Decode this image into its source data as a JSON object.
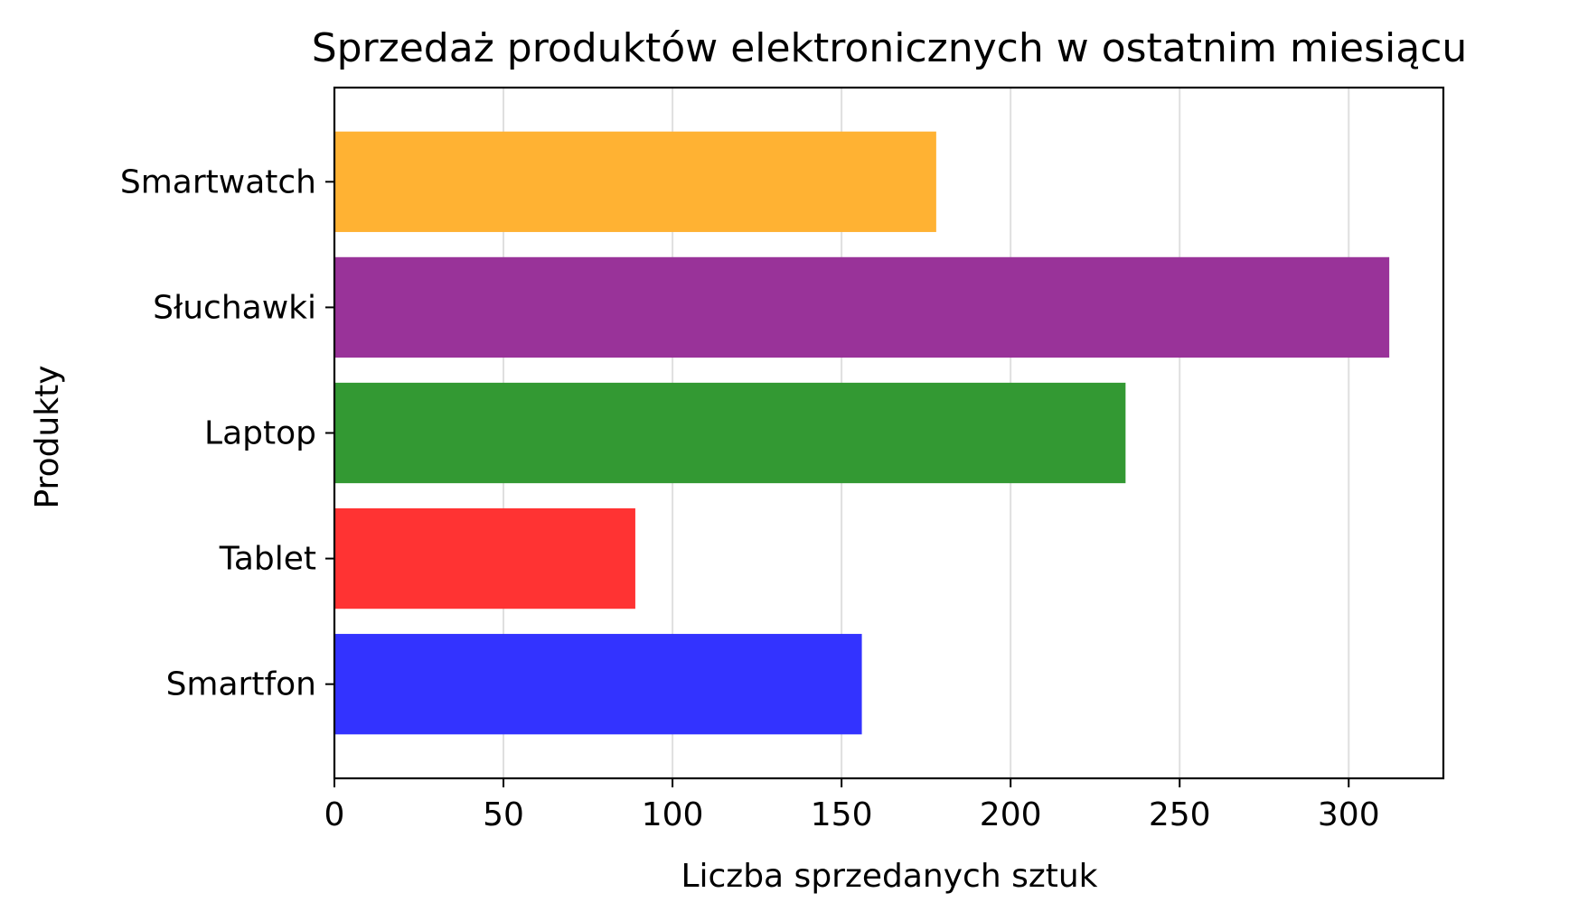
{
  "chart_data": {
    "type": "bar",
    "orientation": "horizontal",
    "title": "Sprzedaż produktów elektronicznych w ostatnim miesiącu",
    "xlabel": "Liczba sprzedanych sztuk",
    "ylabel": "Produkty",
    "categories": [
      "Smartfon",
      "Tablet",
      "Laptop",
      "Słuchawki",
      "Smartwatch"
    ],
    "values": [
      156,
      89,
      234,
      312,
      178
    ],
    "colors": [
      "#3333ff",
      "#ff3333",
      "#339933",
      "#993399",
      "#ffb233"
    ],
    "xlim": [
      0,
      328
    ],
    "xticks": [
      0,
      50,
      100,
      150,
      200,
      250,
      300
    ],
    "xtick_labels": [
      "0",
      "50",
      "100",
      "150",
      "200",
      "250",
      "300"
    ],
    "grid": "x"
  }
}
